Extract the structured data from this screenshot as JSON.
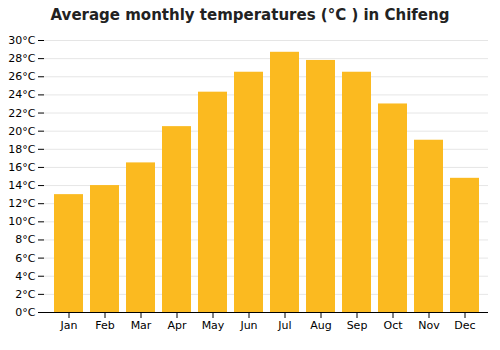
{
  "chart_data": {
    "type": "bar",
    "title": "Average monthly temperatures (°C ) in Chifeng",
    "categories": [
      "Jan",
      "Feb",
      "Mar",
      "Apr",
      "May",
      "Jun",
      "Jul",
      "Aug",
      "Sep",
      "Oct",
      "Nov",
      "Dec"
    ],
    "values": [
      13.0,
      14.0,
      16.5,
      20.5,
      24.3,
      26.5,
      28.7,
      27.8,
      26.5,
      23.0,
      19.0,
      14.8
    ],
    "color": "#FBBA20",
    "ylim": [
      0,
      30
    ],
    "yticks": [
      {
        "value": 0,
        "label": "0°C"
      },
      {
        "value": 2,
        "label": "2°C"
      },
      {
        "value": 4,
        "label": "4°C"
      },
      {
        "value": 6,
        "label": "6°C"
      },
      {
        "value": 8,
        "label": "8°C"
      },
      {
        "value": 10,
        "label": "10°C"
      },
      {
        "value": 12,
        "label": "12°C"
      },
      {
        "value": 14,
        "label": "14°C"
      },
      {
        "value": 16,
        "label": "16°C"
      },
      {
        "value": 18,
        "label": "18°C"
      },
      {
        "value": 20,
        "label": "20°C"
      },
      {
        "value": 22,
        "label": "22°C"
      },
      {
        "value": 24,
        "label": "24°C"
      },
      {
        "value": 26,
        "label": "26°C"
      },
      {
        "value": 28,
        "label": "28°C"
      },
      {
        "value": 30,
        "label": "30°C"
      }
    ],
    "grid": true
  }
}
